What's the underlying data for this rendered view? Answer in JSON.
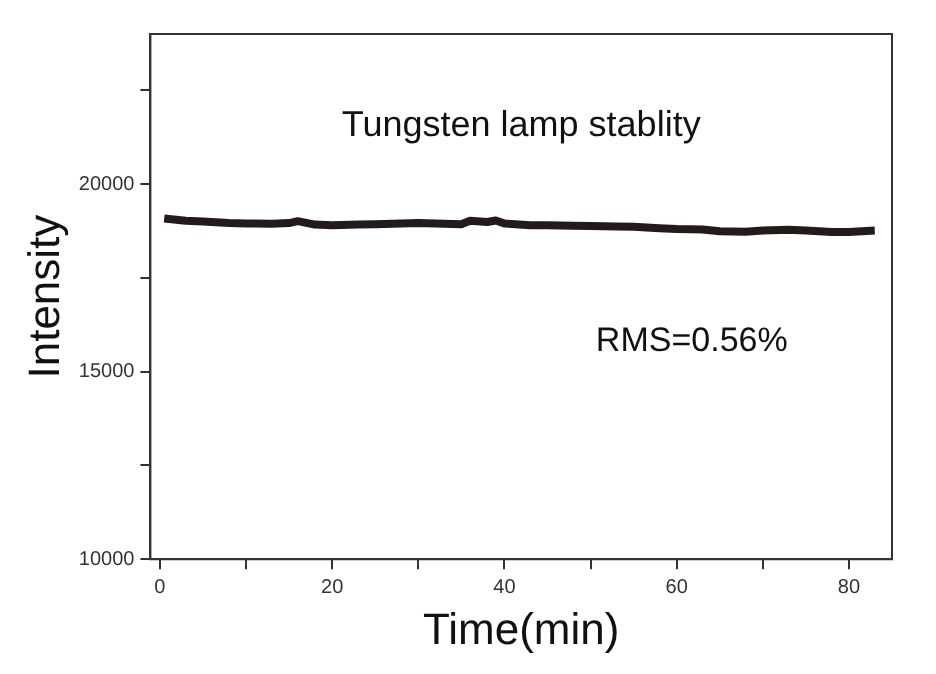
{
  "chart_data": {
    "type": "line",
    "title": "Tungsten lamp stablity",
    "xlabel": "Time(min)",
    "ylabel": "Intensity",
    "annotations": [
      "RMS=0.56%"
    ],
    "x": [
      0.5,
      3,
      5,
      8,
      10,
      13,
      15,
      16,
      18,
      20,
      23,
      25,
      28,
      30,
      33,
      35,
      36,
      38,
      39,
      40,
      43,
      45,
      48,
      50,
      53,
      55,
      58,
      60,
      63,
      65,
      68,
      70,
      73,
      75,
      78,
      80,
      82,
      83
    ],
    "series": [
      {
        "color": "#231a1a",
        "values": [
          19080,
          19020,
          19000,
          18960,
          18950,
          18940,
          18960,
          19010,
          18920,
          18900,
          18920,
          18930,
          18950,
          18960,
          18940,
          18930,
          19020,
          18990,
          19030,
          18950,
          18900,
          18900,
          18890,
          18880,
          18870,
          18860,
          18820,
          18800,
          18790,
          18740,
          18730,
          18760,
          18780,
          18760,
          18720,
          18720,
          18750,
          18760
        ]
      }
    ],
    "xlim": [
      -1.1,
      85
    ],
    "xticks": [
      0,
      {
        "value": 10,
        "label": null
      },
      20,
      {
        "value": 30,
        "label": null
      },
      40,
      {
        "value": 50,
        "label": null
      },
      60,
      {
        "value": 70,
        "label": null
      },
      80
    ],
    "ylim": [
      10000,
      24000
    ],
    "yticks": [
      10000,
      {
        "value": 12500,
        "label": null
      },
      15000,
      {
        "value": 17500,
        "label": null
      },
      20000,
      {
        "value": 22500,
        "label": null
      }
    ],
    "grid": false,
    "legend": false,
    "marker": "none",
    "line_style": "solid"
  }
}
